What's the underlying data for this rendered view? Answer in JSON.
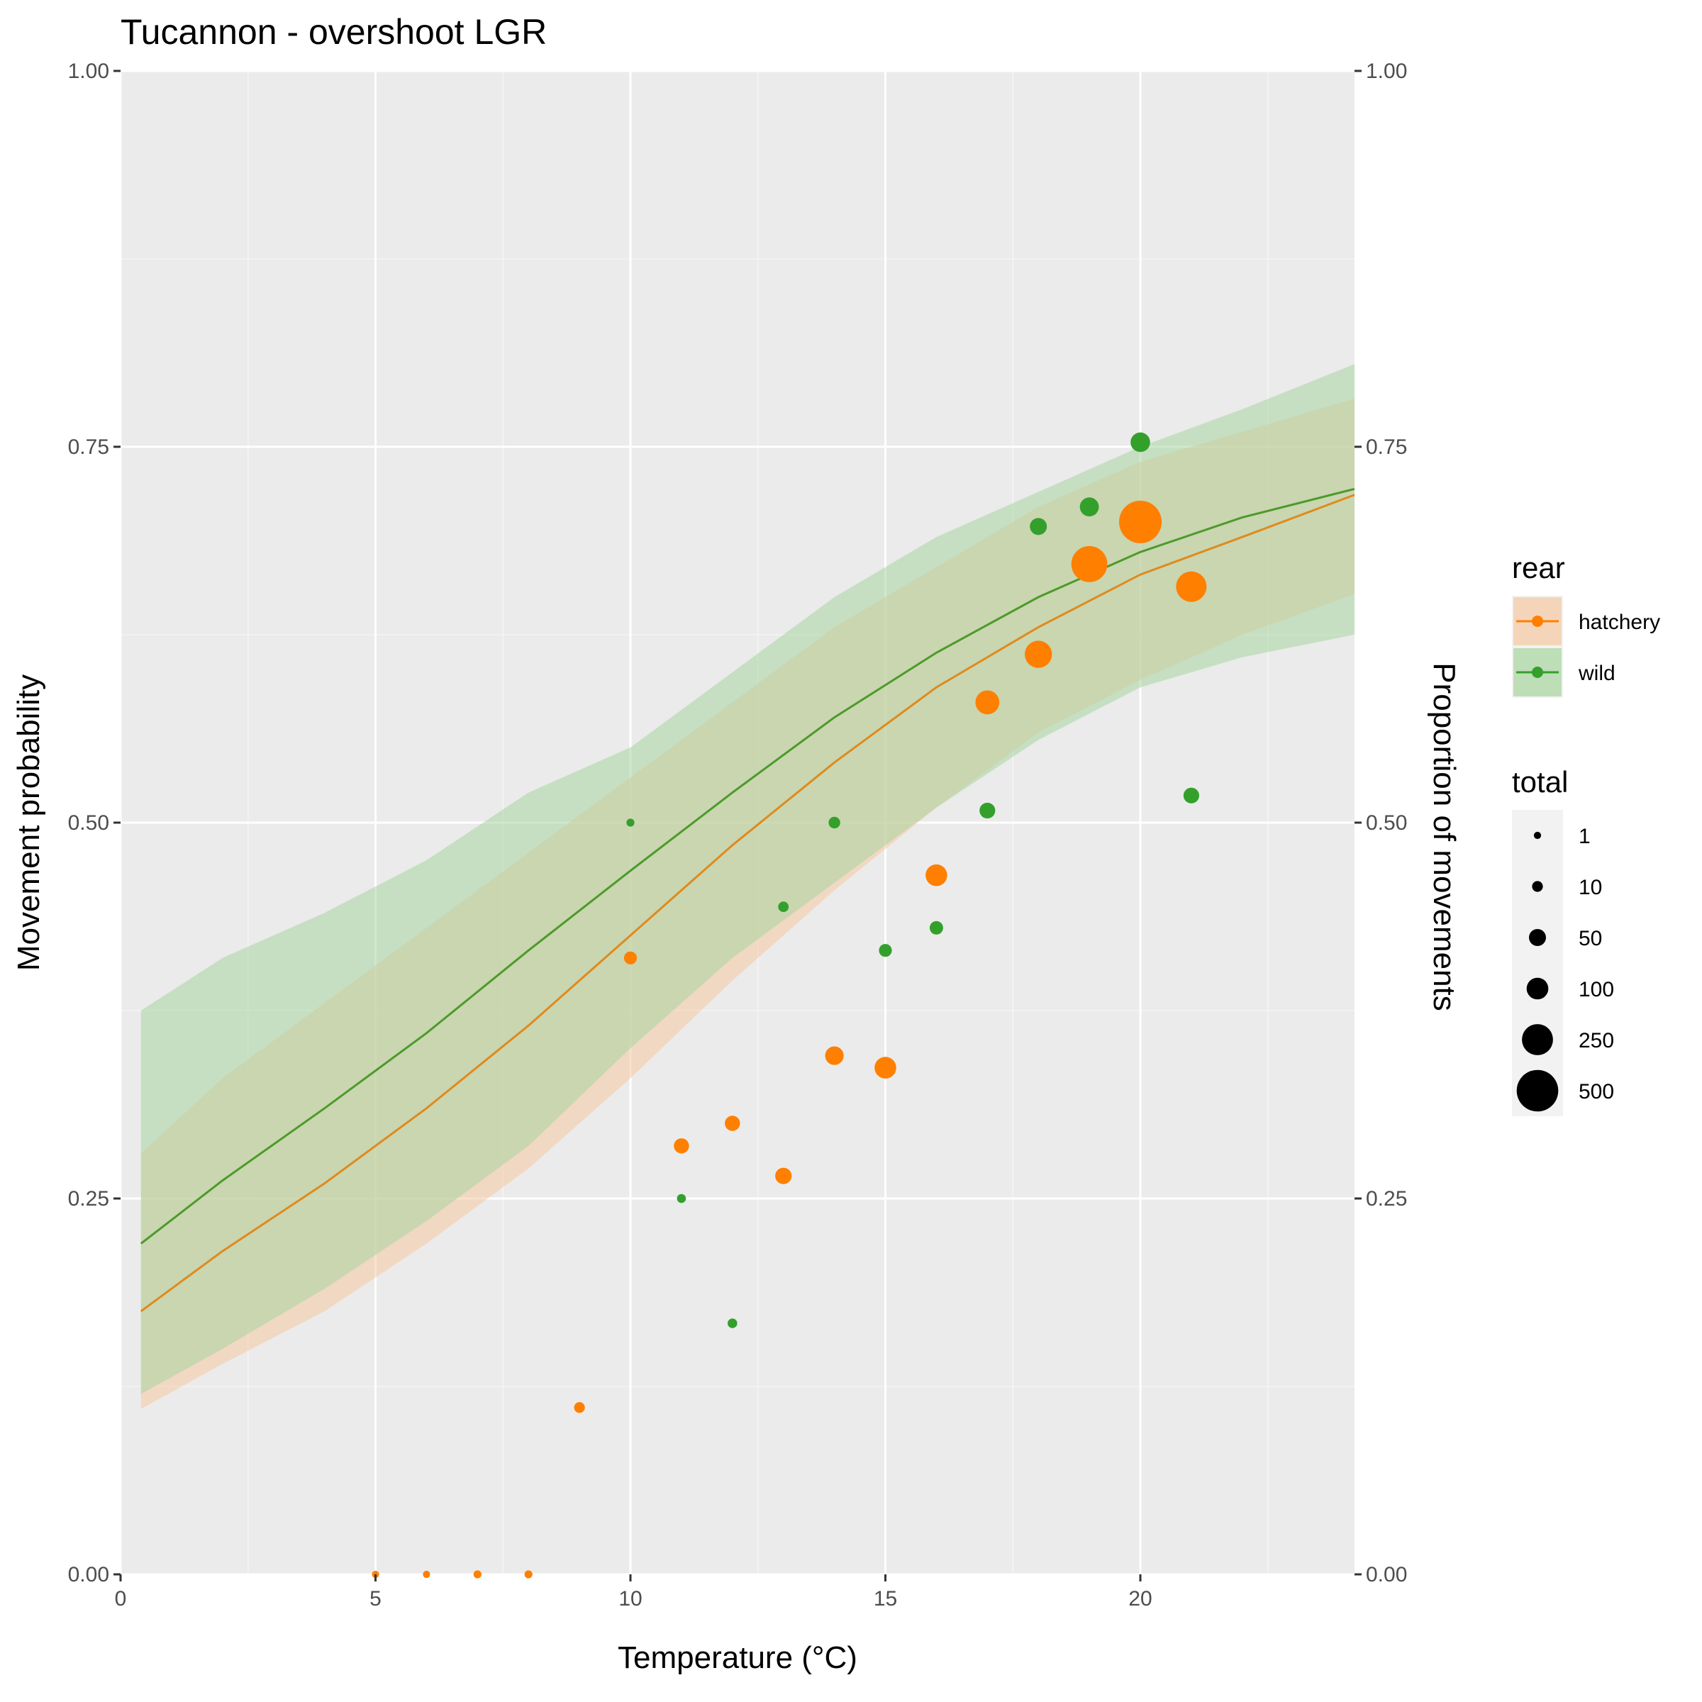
{
  "chart_data": {
    "type": "line",
    "title": "Tucannon - overshoot LGR",
    "xlabel": "Temperature (°C)",
    "ylabel": "Movement probability",
    "ylabel_right": "Proportion of movements",
    "xlim": [
      0,
      24.2
    ],
    "ylim": [
      0,
      1
    ],
    "x_ticks": [
      0,
      5,
      10,
      15,
      20
    ],
    "x_tick_labels": [
      "0",
      "5",
      "10",
      "15",
      "20"
    ],
    "y_ticks": [
      0,
      0.25,
      0.5,
      0.75,
      1
    ],
    "y_tick_labels": [
      "0.00",
      "0.25",
      "0.50",
      "0.75",
      "1.00"
    ],
    "y_ticks_right": [
      0,
      0.25,
      0.5,
      0.75,
      1
    ],
    "y_tick_labels_right": [
      "0.00",
      "0.25",
      "0.50",
      "0.75",
      "1.00"
    ],
    "grid": true,
    "legend_position": "right",
    "series": [
      {
        "name": "hatchery",
        "color": "#ff7f00",
        "line_color": "#e08a1c",
        "ribbon_color": "#f5c9a3",
        "curve": {
          "x": [
            0.4,
            2,
            4,
            6,
            8,
            10,
            12,
            14,
            16,
            18,
            20,
            22,
            24.2
          ],
          "y": [
            0.175,
            0.215,
            0.26,
            0.31,
            0.365,
            0.425,
            0.485,
            0.54,
            0.59,
            0.63,
            0.665,
            0.69,
            0.718
          ]
        },
        "ribbon": {
          "x": [
            0.4,
            2,
            4,
            6,
            8,
            10,
            12,
            14,
            16,
            18,
            20,
            22,
            24.2
          ],
          "lower": [
            0.11,
            0.14,
            0.175,
            0.22,
            0.27,
            0.33,
            0.395,
            0.455,
            0.51,
            0.56,
            0.595,
            0.625,
            0.652
          ],
          "upper": [
            0.28,
            0.33,
            0.38,
            0.43,
            0.48,
            0.53,
            0.58,
            0.63,
            0.67,
            0.71,
            0.74,
            0.76,
            0.782
          ]
        },
        "points": [
          {
            "x": 5,
            "y": 0.0,
            "total": 1
          },
          {
            "x": 6,
            "y": 0.0,
            "total": 1
          },
          {
            "x": 7,
            "y": 0.0,
            "total": 2
          },
          {
            "x": 8,
            "y": 0.0,
            "total": 2
          },
          {
            "x": 9,
            "y": 0.111,
            "total": 10
          },
          {
            "x": 10,
            "y": 0.41,
            "total": 20
          },
          {
            "x": 11,
            "y": 0.285,
            "total": 35
          },
          {
            "x": 12,
            "y": 0.3,
            "total": 35
          },
          {
            "x": 13,
            "y": 0.265,
            "total": 45
          },
          {
            "x": 14,
            "y": 0.345,
            "total": 65
          },
          {
            "x": 15,
            "y": 0.337,
            "total": 100
          },
          {
            "x": 16,
            "y": 0.465,
            "total": 100
          },
          {
            "x": 17,
            "y": 0.58,
            "total": 130
          },
          {
            "x": 18,
            "y": 0.612,
            "total": 180
          },
          {
            "x": 19,
            "y": 0.672,
            "total": 360
          },
          {
            "x": 20,
            "y": 0.7,
            "total": 530
          },
          {
            "x": 21,
            "y": 0.657,
            "total": 240
          }
        ]
      },
      {
        "name": "wild",
        "color": "#33a02c",
        "line_color": "#4d9a2a",
        "ribbon_color": "#a8d6a0",
        "curve": {
          "x": [
            0.4,
            2,
            4,
            6,
            8,
            10,
            12,
            14,
            16,
            18,
            20,
            22,
            24.2
          ],
          "y": [
            0.22,
            0.262,
            0.31,
            0.36,
            0.415,
            0.468,
            0.52,
            0.57,
            0.613,
            0.65,
            0.68,
            0.703,
            0.722
          ]
        },
        "ribbon": {
          "x": [
            0.4,
            2,
            4,
            6,
            8,
            10,
            12,
            14,
            16,
            18,
            20,
            22,
            24.2
          ],
          "lower": [
            0.12,
            0.15,
            0.19,
            0.235,
            0.285,
            0.35,
            0.41,
            0.46,
            0.51,
            0.555,
            0.59,
            0.61,
            0.625
          ],
          "upper": [
            0.375,
            0.41,
            0.44,
            0.475,
            0.52,
            0.55,
            0.6,
            0.65,
            0.69,
            0.72,
            0.75,
            0.775,
            0.805
          ]
        },
        "points": [
          {
            "x": 10,
            "y": 0.5,
            "total": 2
          },
          {
            "x": 11,
            "y": 0.25,
            "total": 4
          },
          {
            "x": 12,
            "y": 0.167,
            "total": 6
          },
          {
            "x": 13,
            "y": 0.444,
            "total": 9
          },
          {
            "x": 14,
            "y": 0.5,
            "total": 14
          },
          {
            "x": 15,
            "y": 0.415,
            "total": 20
          },
          {
            "x": 16,
            "y": 0.43,
            "total": 24
          },
          {
            "x": 17,
            "y": 0.508,
            "total": 40
          },
          {
            "x": 18,
            "y": 0.697,
            "total": 50
          },
          {
            "x": 19,
            "y": 0.71,
            "total": 70
          },
          {
            "x": 20,
            "y": 0.753,
            "total": 75
          },
          {
            "x": 21,
            "y": 0.518,
            "total": 40
          }
        ]
      }
    ],
    "legend": {
      "color_title": "rear",
      "color_items": [
        {
          "label": "hatchery",
          "color": "#ff7f00",
          "fill": "#f5c9a3"
        },
        {
          "label": "wild",
          "color": "#33a02c",
          "fill": "#a8d6a0"
        }
      ],
      "size_title": "total",
      "size_items": [
        {
          "label": "1",
          "value": 1
        },
        {
          "label": "10",
          "value": 10
        },
        {
          "label": "50",
          "value": 50
        },
        {
          "label": "100",
          "value": 100
        },
        {
          "label": "250",
          "value": 250
        },
        {
          "label": "500",
          "value": 500
        }
      ]
    }
  }
}
